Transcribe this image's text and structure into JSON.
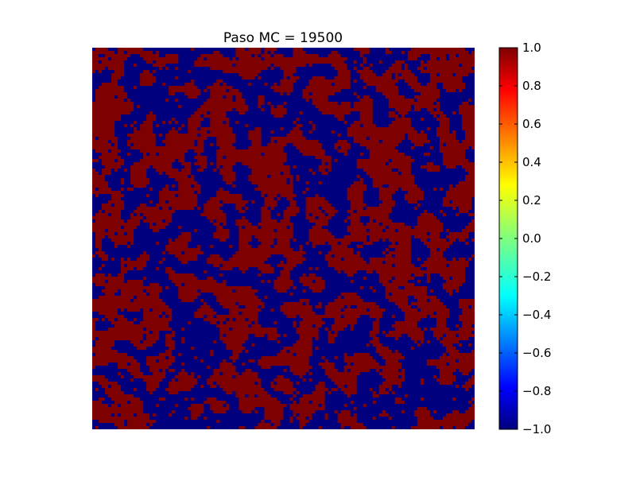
{
  "chart_data": {
    "type": "heatmap",
    "title": "Paso MC = 19500",
    "xlabel": "",
    "ylabel": "",
    "axes_visible": false,
    "grid": false,
    "colormap": "jet",
    "value_range": [
      -1.0,
      1.0
    ],
    "lattice_size": [
      120,
      120
    ],
    "spin_values": [
      -1,
      1
    ],
    "spin_colors": {
      "-1": "#00007f",
      "1": "#7f0000"
    },
    "colorbar": {
      "placement": "right",
      "ticks": [
        1.0,
        0.8,
        0.6,
        0.4,
        0.2,
        0.0,
        -0.2,
        -0.4,
        -0.6,
        -0.8,
        -1.0
      ],
      "tick_labels": [
        "1.0",
        "0.8",
        "0.6",
        "0.4",
        "0.2",
        "0.0",
        "−0.2",
        "−0.4",
        "−0.6",
        "−0.8",
        "−1.0"
      ]
    }
  }
}
